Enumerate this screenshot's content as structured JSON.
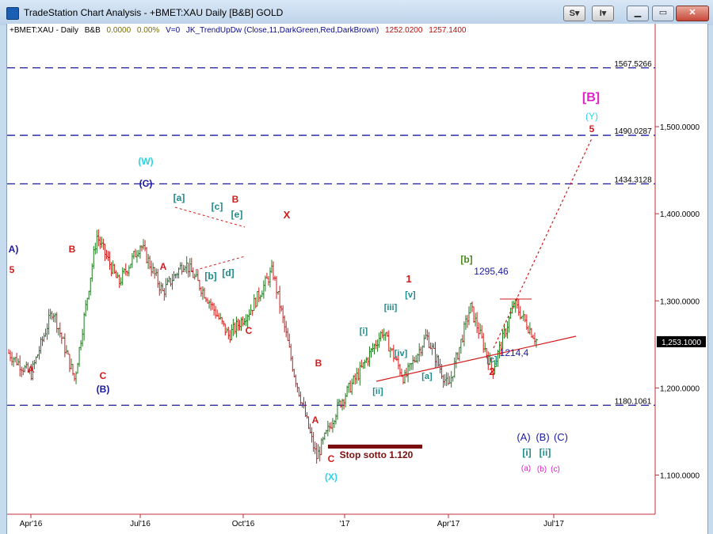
{
  "window": {
    "title": "TradeStation Chart Analysis - +BMET:XAU Daily [B&B] GOLD",
    "menu_s": "S",
    "menu_i": "I",
    "menu_arrow": "▾"
  },
  "header": {
    "symbol": "+BMET:XAU - Daily",
    "bb": "B&B",
    "value1": "0.0000",
    "value2": "0.00%",
    "vol": "V=0",
    "indicator": "JK_TrendUpDw (Close,11,DarkGreen,Red,DarkBrown)",
    "price1": "1252.0200",
    "price2": "1257.1400"
  },
  "colors": {
    "bar_up": "#1f7a1f",
    "bar_down": "#d21b1b",
    "dash": "#1a1aa0",
    "axis_red": "#c0303a",
    "cyan": "#2bd3e6",
    "magenta": "#e020c8",
    "teal": "#1e8a8a",
    "green": "#4a8a1a",
    "darkred_bar": "#7a0d0d"
  },
  "chart_data": {
    "type": "bar",
    "title": "",
    "ylim": [
      1055,
      1600
    ],
    "y_ticks": [
      "1,500.0000",
      "1,400.0000",
      "1,300.0000",
      "1,200.0000",
      "1,100.0000"
    ],
    "y_tick_values": [
      1500,
      1400,
      1300,
      1200,
      1100
    ],
    "x_ticks": [
      "Apr'16",
      "Jul'16",
      "Oct'16",
      "'17",
      "Apr'17",
      "Jul'17"
    ],
    "last_price": "1,253.1000",
    "last_value": 1253.1,
    "levels": [
      {
        "label": "1567.5266",
        "value": 1567.5266
      },
      {
        "label": "1490.0287",
        "value": 1490.0287
      },
      {
        "label": "1434.3128",
        "value": 1434.3128
      },
      {
        "label": "1180.1061",
        "value": 1180.1061
      }
    ],
    "pivots": [
      1240,
      1215,
      1290,
      1210,
      1375,
      1320,
      1365,
      1310,
      1345,
      1305,
      1260,
      1290,
      1335,
      1215,
      1120,
      1180,
      1220,
      1265,
      1210,
      1260,
      1200,
      1293,
      1220,
      1297,
      1255
    ]
  },
  "annotations": {
    "wave_W": "(W)",
    "wave_C_top": "(C)",
    "wave_A_left": "A)",
    "wave_5_left": "5",
    "wave_B_left": "B",
    "wave_A_red1": "A",
    "wave_C_red1": "C",
    "wave_B_blue": "(B)",
    "wave_a_sq": "[a]",
    "wave_c_sq": "[c]",
    "wave_B_red2": "B",
    "wave_e_sq": "[e]",
    "wave_A_red2": "A",
    "wave_b_sq": "[b]",
    "wave_d_sq": "[d]",
    "wave_X_red": "X",
    "wave_C_red2": "C",
    "wave_B_red3": "B",
    "wave_A_red3": "A",
    "wave_C_red3": "C",
    "wave_X_cyan": "(X)",
    "stop_label": "Stop sotto 1.120",
    "wave_ii_sq": "[ii]",
    "wave_i_sq": "[i]",
    "wave_iii_sq": "[iii]",
    "wave_iv_sq": "[iv]",
    "wave_v_sq": "[v]",
    "wave_1_red": "1",
    "wave_a_sq2": "[a]",
    "wave_b_green": "[b]",
    "price_1295": "1295,46",
    "wave_c_sq2": "[c]",
    "wave_2_red": "2",
    "price_1214": "1214,4",
    "wave_B_magenta": "[B]",
    "wave_Y_cyan": "(Y)",
    "wave_5_red": "5",
    "proj_A": "(A)",
    "proj_B": "(B)",
    "proj_C": "(C)",
    "proj_i": "[i]",
    "proj_ii": "[ii]",
    "proj_a": "(a)",
    "proj_b": "(b)",
    "proj_c": "(c)"
  }
}
